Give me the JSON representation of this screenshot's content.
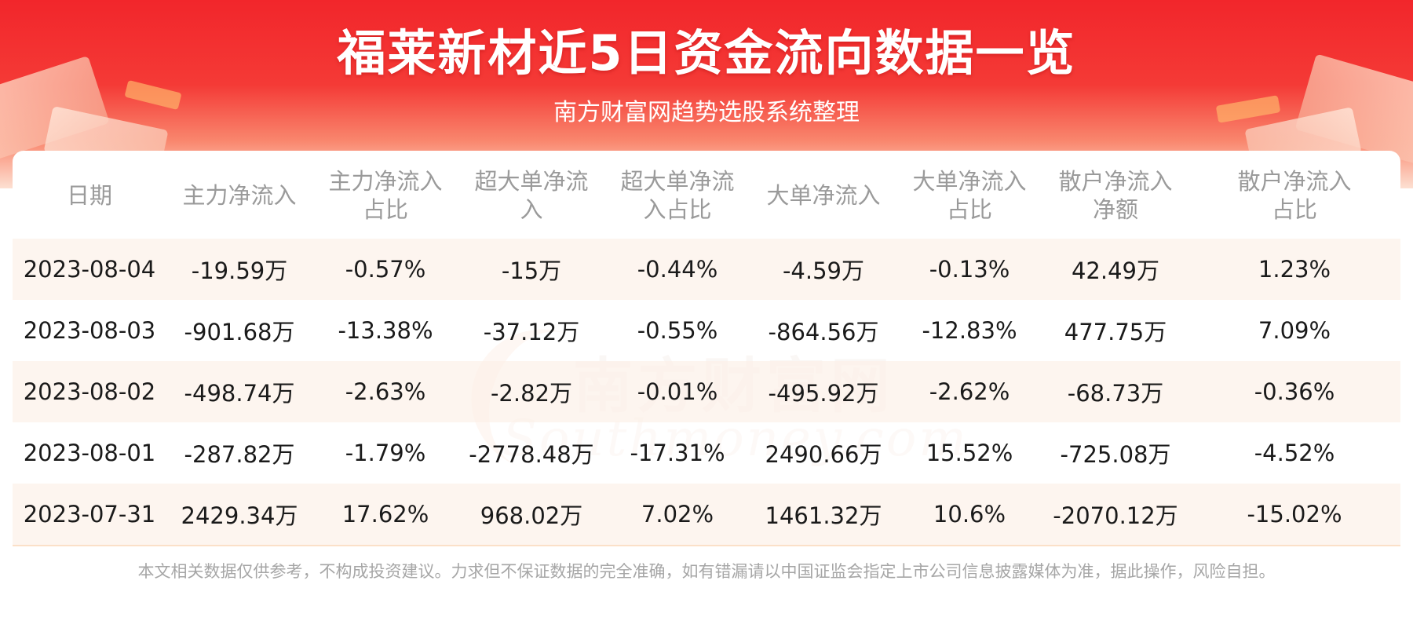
{
  "header": {
    "title": "福莱新材近5日资金流向数据一览",
    "subtitle": "南方财富网趋势选股系统整理"
  },
  "watermark": {
    "cn": "南方财富网",
    "en": "Southmoney.com"
  },
  "table": {
    "columns": [
      "日期",
      "主力净流入",
      "主力净流入占比",
      "超大单净流入",
      "超大单净流入占比",
      "大单净流入",
      "大单净流入占比",
      "散户净流入净额",
      "散户净流入占比"
    ],
    "rows": [
      [
        "2023-08-04",
        "-19.59万",
        "-0.57%",
        "-15万",
        "-0.44%",
        "-4.59万",
        "-0.13%",
        "42.49万",
        "1.23%"
      ],
      [
        "2023-08-03",
        "-901.68万",
        "-13.38%",
        "-37.12万",
        "-0.55%",
        "-864.56万",
        "-12.83%",
        "477.75万",
        "7.09%"
      ],
      [
        "2023-08-02",
        "-498.74万",
        "-2.63%",
        "-2.82万",
        "-0.01%",
        "-495.92万",
        "-2.62%",
        "-68.73万",
        "-0.36%"
      ],
      [
        "2023-08-01",
        "-287.82万",
        "-1.79%",
        "-2778.48万",
        "-17.31%",
        "2490.66万",
        "15.52%",
        "-725.08万",
        "-4.52%"
      ],
      [
        "2023-07-31",
        "2429.34万",
        "17.62%",
        "968.02万",
        "7.02%",
        "1461.32万",
        "10.6%",
        "-2070.12万",
        "-15.02%"
      ]
    ]
  },
  "footer": {
    "disclaimer": "本文相关数据仅供参考，不构成投资建议。力求但不保证数据的完全准确，如有错漏请以中国证监会指定上市公司信息披露媒体为准，据此操作，风险自担。"
  }
}
